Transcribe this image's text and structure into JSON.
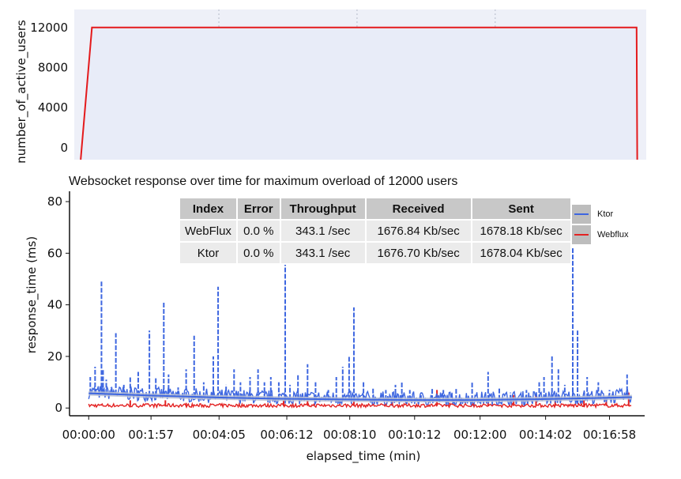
{
  "chart_data": [
    {
      "type": "area",
      "ylabel": "number_of_active_users",
      "xlabel": "",
      "ylim": [
        -1200,
        13800
      ],
      "yticks": [
        0,
        4000,
        8000,
        12000
      ],
      "xlim": [
        -0.2,
        17.6
      ],
      "vertical_gridlines_min": [
        4.3,
        8.6,
        12.9
      ],
      "series": [
        {
          "color": "#e41a1c",
          "fill": "#e8ecf8",
          "x": [
            0,
            0.35,
            17.3,
            17.32
          ],
          "y": [
            -1200,
            12000,
            12000,
            -1200
          ]
        }
      ]
    },
    {
      "type": "line",
      "title": "Websocket response over time for maximum overload of 12000 users",
      "xlabel": "elapsed_time (min)",
      "ylabel": "response_time (ms)",
      "xlim": [
        -0.6,
        17.4
      ],
      "ylim": [
        -3,
        84
      ],
      "yticks": [
        0,
        20,
        40,
        60,
        80
      ],
      "xticks": [
        {
          "pos": 0,
          "label": "00:00:00"
        },
        {
          "pos": 1.95,
          "label": "00:1:57"
        },
        {
          "pos": 4.08,
          "label": "00:04:05"
        },
        {
          "pos": 6.2,
          "label": "00:06:12"
        },
        {
          "pos": 8.17,
          "label": "00:08:10"
        },
        {
          "pos": 10.2,
          "label": "00:10:12"
        },
        {
          "pos": 12.25,
          "label": "00:12:00"
        },
        {
          "pos": 14.3,
          "label": "00:14:02"
        },
        {
          "pos": 16.3,
          "label": "00:16:58"
        }
      ],
      "ktor_spikes": [
        [
          0.05,
          12
        ],
        [
          0.2,
          16
        ],
        [
          0.4,
          49
        ],
        [
          0.45,
          15
        ],
        [
          0.55,
          11
        ],
        [
          0.7,
          8
        ],
        [
          0.85,
          29
        ],
        [
          1.1,
          9
        ],
        [
          1.3,
          12
        ],
        [
          1.55,
          14
        ],
        [
          1.9,
          30
        ],
        [
          2.1,
          12
        ],
        [
          2.35,
          41
        ],
        [
          2.5,
          13
        ],
        [
          2.8,
          8
        ],
        [
          3.05,
          15
        ],
        [
          3.3,
          28
        ],
        [
          3.6,
          10
        ],
        [
          3.9,
          20
        ],
        [
          4.05,
          47
        ],
        [
          4.3,
          9
        ],
        [
          4.55,
          15
        ],
        [
          4.75,
          10
        ],
        [
          5.05,
          12
        ],
        [
          5.3,
          15
        ],
        [
          5.5,
          10
        ],
        [
          5.7,
          12
        ],
        [
          5.95,
          10
        ],
        [
          6.15,
          57
        ],
        [
          6.3,
          9
        ],
        [
          6.55,
          13
        ],
        [
          6.85,
          17
        ],
        [
          7.1,
          10
        ],
        [
          7.5,
          7
        ],
        [
          7.75,
          12
        ],
        [
          7.95,
          16
        ],
        [
          8.15,
          20
        ],
        [
          8.3,
          39
        ],
        [
          8.6,
          10
        ],
        [
          8.9,
          8
        ],
        [
          9.3,
          7
        ],
        [
          9.6,
          9
        ],
        [
          9.8,
          10
        ],
        [
          10.05,
          7
        ],
        [
          10.4,
          6
        ],
        [
          10.75,
          8
        ],
        [
          11.1,
          7
        ],
        [
          11.5,
          8
        ],
        [
          12.0,
          10
        ],
        [
          12.5,
          14
        ],
        [
          12.85,
          8
        ],
        [
          13.2,
          6
        ],
        [
          13.7,
          7
        ],
        [
          14.1,
          10
        ],
        [
          14.25,
          12
        ],
        [
          14.5,
          20
        ],
        [
          14.7,
          15
        ],
        [
          14.9,
          9
        ],
        [
          15.15,
          62
        ],
        [
          15.3,
          30
        ],
        [
          15.6,
          12
        ],
        [
          15.95,
          10
        ],
        [
          16.3,
          7
        ],
        [
          16.85,
          13
        ]
      ],
      "webflux_spikes": [
        [
          1.3,
          3
        ],
        [
          2.4,
          3
        ],
        [
          3.05,
          2
        ],
        [
          6.1,
          3
        ],
        [
          6.85,
          3
        ],
        [
          8.3,
          3
        ],
        [
          9.5,
          4
        ],
        [
          10.9,
          7
        ],
        [
          11.3,
          2
        ],
        [
          12.5,
          2
        ],
        [
          13.3,
          5
        ],
        [
          14.0,
          5
        ],
        [
          14.6,
          3
        ],
        [
          15.5,
          3
        ],
        [
          16.2,
          4
        ],
        [
          16.9,
          6
        ]
      ],
      "series": [
        {
          "name": "Ktor",
          "color": "#3d66e0",
          "trend": [
            [
              0,
              5.7
            ],
            [
              2,
              4.8
            ],
            [
              4,
              4.1
            ],
            [
              6,
              3.6
            ],
            [
              8,
              3.3
            ],
            [
              10,
              3.1
            ],
            [
              12,
              3.1
            ],
            [
              14,
              3.4
            ],
            [
              16,
              3.9
            ],
            [
              17,
              4.2
            ]
          ]
        },
        {
          "name": "Webflux",
          "color": "#e32222",
          "trend": [
            [
              0,
              1.2
            ],
            [
              17,
              1.2
            ]
          ]
        }
      ],
      "legend_position": "right",
      "table": {
        "headers": [
          "Index",
          "Error",
          "Throughput",
          "Received",
          "Sent"
        ],
        "rows": [
          [
            "WebFlux",
            "0.0 %",
            "343.1 /sec",
            "1676.84 Kb/sec",
            "1678.18 Kb/sec"
          ],
          [
            "Ktor",
            "0.0 %",
            "343.1 /sec",
            "1676.70 Kb/sec",
            "1678.04 Kb/sec"
          ]
        ]
      }
    }
  ]
}
